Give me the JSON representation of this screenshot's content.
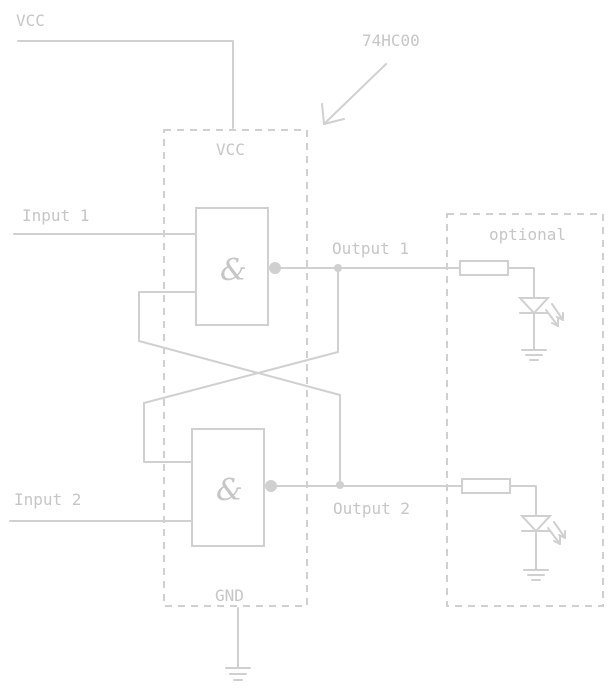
{
  "labels": {
    "vcc_top": "VCC",
    "chip_part": "74HC00",
    "vcc_chip": "VCC",
    "gnd": "GND",
    "input1": "Input 1",
    "input2": "Input 2",
    "output1": "Output 1",
    "output2": "Output 2",
    "optional": "optional",
    "gate_symbol": "&"
  },
  "colors": {
    "stroke": "#d0d0d0",
    "text": "#c6c6c6",
    "background": "#ffffff"
  }
}
